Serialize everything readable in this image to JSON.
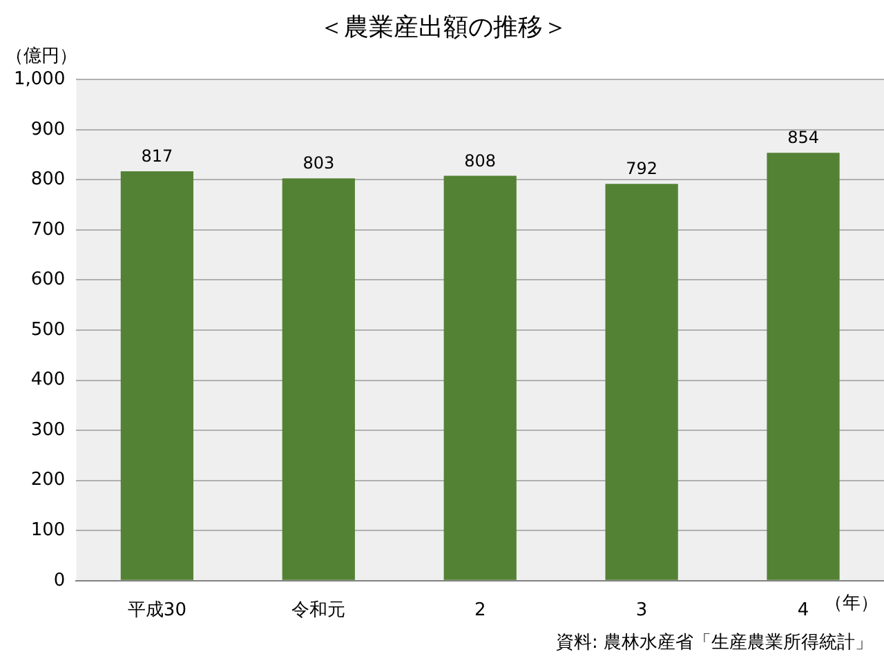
{
  "chart_data": {
    "type": "bar",
    "title": "＜農業産出額の推移＞",
    "ylabel": "（億円）",
    "xlabel": "（年）",
    "categories": [
      "平成30",
      "令和元",
      "2",
      "3",
      "4"
    ],
    "values": [
      817,
      803,
      808,
      792,
      854
    ],
    "color": "#548235",
    "ylim": [
      0,
      1000
    ],
    "yticks": [
      0,
      100,
      200,
      300,
      400,
      500,
      600,
      700,
      800,
      900,
      {
        "value": 1000,
        "label": "1,000"
      }
    ],
    "grid": "y",
    "data_labels": true,
    "legend": false,
    "annotations": [
      "資料: 農林水産省「生産農業所得統計」"
    ]
  }
}
